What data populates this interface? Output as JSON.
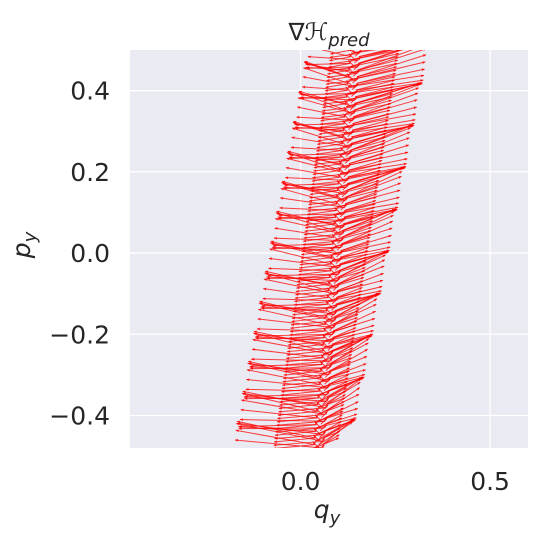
{
  "chart_data": {
    "type": "quiver",
    "title": "∇H_pred",
    "title_parts": {
      "nabla": "∇",
      "script_h": "ℋ",
      "subscript": "pred"
    },
    "xlabel": "q_y",
    "xlabel_parts": {
      "base": "q",
      "sub": "y"
    },
    "ylabel": "p_y",
    "ylabel_parts": {
      "base": "p",
      "sub": "y"
    },
    "xlim": [
      -0.45,
      0.6
    ],
    "ylim": [
      -0.48,
      0.5
    ],
    "xticks": [
      0.0,
      0.5
    ],
    "xtick_labels": [
      "0.0",
      "0.5"
    ],
    "yticks": [
      -0.4,
      -0.2,
      0.0,
      0.2,
      0.4
    ],
    "ytick_labels": [
      "−0.4",
      "−0.2",
      "0.0",
      "0.2",
      "0.4"
    ],
    "grid": true,
    "legend": "none",
    "colors": {
      "background": "#eaeaf2",
      "grid": "#ffffff",
      "arrows": "#ff0000",
      "text": "#262626"
    },
    "vector_field": {
      "description_values": {
        "p_samples": [
          -0.48,
          0.5,
          120
        ],
        "center_line": {
          "slope_dq_dp": 0.05,
          "q_at_p0": 0.095
        },
        "spread_left_dq": 0.22,
        "spread_right_dq": 0.2,
        "arrow_direction": "along the band toward larger q and p"
      }
    }
  }
}
